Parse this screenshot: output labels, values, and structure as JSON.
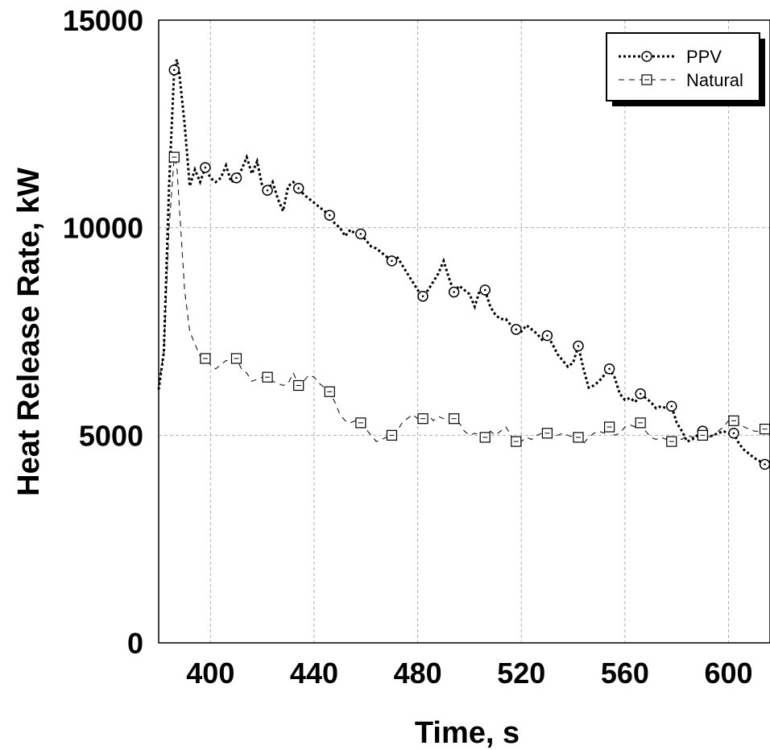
{
  "chart_data": {
    "type": "line",
    "title": "",
    "xlabel": "Time, s",
    "ylabel": "Heat Release Rate, kW",
    "xlim": [
      380,
      616
    ],
    "ylim": [
      0,
      15000
    ],
    "x_ticks": [
      400,
      440,
      480,
      520,
      560,
      600
    ],
    "x_tick_labels": [
      "400",
      "440",
      "480",
      "520",
      "560",
      "600"
    ],
    "y_ticks": [
      0,
      5000,
      10000,
      15000
    ],
    "y_tick_labels": [
      "0",
      "5000",
      "10000",
      "15000"
    ],
    "grid": true,
    "legend_position": "top-right",
    "series": [
      {
        "name": "PPV",
        "line_style": "dotted",
        "marker": "circle",
        "points": [
          [
            380,
            6100
          ],
          [
            382,
            7000
          ],
          [
            384,
            11000
          ],
          [
            386,
            13800
          ],
          [
            387,
            14050
          ],
          [
            388,
            13700
          ],
          [
            390,
            12500
          ],
          [
            392,
            11000
          ],
          [
            394,
            11400
          ],
          [
            396,
            11100
          ],
          [
            398,
            11450
          ],
          [
            400,
            11200
          ],
          [
            402,
            11100
          ],
          [
            404,
            11200
          ],
          [
            406,
            11500
          ],
          [
            408,
            11100
          ],
          [
            410,
            11200
          ],
          [
            412,
            11400
          ],
          [
            414,
            11700
          ],
          [
            416,
            11300
          ],
          [
            418,
            11600
          ],
          [
            420,
            11000
          ],
          [
            422,
            10900
          ],
          [
            424,
            11100
          ],
          [
            426,
            10700
          ],
          [
            428,
            10400
          ],
          [
            430,
            11000
          ],
          [
            432,
            11100
          ],
          [
            434,
            10950
          ],
          [
            436,
            10800
          ],
          [
            438,
            10700
          ],
          [
            440,
            10600
          ],
          [
            442,
            10500
          ],
          [
            444,
            10400
          ],
          [
            446,
            10300
          ],
          [
            448,
            10100
          ],
          [
            450,
            10000
          ],
          [
            452,
            9800
          ],
          [
            454,
            9950
          ],
          [
            456,
            9850
          ],
          [
            458,
            9850
          ],
          [
            460,
            9700
          ],
          [
            462,
            9550
          ],
          [
            464,
            9500
          ],
          [
            466,
            9400
          ],
          [
            468,
            9300
          ],
          [
            470,
            9200
          ],
          [
            472,
            9300
          ],
          [
            474,
            9100
          ],
          [
            476,
            8900
          ],
          [
            478,
            8700
          ],
          [
            480,
            8500
          ],
          [
            482,
            8350
          ],
          [
            484,
            8500
          ],
          [
            486,
            8700
          ],
          [
            488,
            8900
          ],
          [
            490,
            9200
          ],
          [
            492,
            8800
          ],
          [
            494,
            8450
          ],
          [
            496,
            8600
          ],
          [
            498,
            8500
          ],
          [
            500,
            8400
          ],
          [
            502,
            8100
          ],
          [
            504,
            8500
          ],
          [
            506,
            8500
          ],
          [
            508,
            8100
          ],
          [
            510,
            7900
          ],
          [
            512,
            7800
          ],
          [
            514,
            7800
          ],
          [
            516,
            7650
          ],
          [
            518,
            7550
          ],
          [
            520,
            7500
          ],
          [
            522,
            7650
          ],
          [
            524,
            7550
          ],
          [
            526,
            7450
          ],
          [
            528,
            7300
          ],
          [
            530,
            7400
          ],
          [
            532,
            7200
          ],
          [
            534,
            6950
          ],
          [
            536,
            6800
          ],
          [
            538,
            6650
          ],
          [
            540,
            6750
          ],
          [
            542,
            7150
          ],
          [
            544,
            6600
          ],
          [
            546,
            6150
          ],
          [
            548,
            6200
          ],
          [
            550,
            6300
          ],
          [
            552,
            6450
          ],
          [
            554,
            6600
          ],
          [
            556,
            6400
          ],
          [
            558,
            6000
          ],
          [
            560,
            5850
          ],
          [
            562,
            5900
          ],
          [
            564,
            5800
          ],
          [
            566,
            6000
          ],
          [
            568,
            5900
          ],
          [
            570,
            5800
          ],
          [
            572,
            5650
          ],
          [
            574,
            5700
          ],
          [
            576,
            5650
          ],
          [
            578,
            5700
          ],
          [
            580,
            5300
          ],
          [
            582,
            5100
          ],
          [
            584,
            4850
          ],
          [
            586,
            4900
          ],
          [
            588,
            5000
          ],
          [
            590,
            5100
          ],
          [
            592,
            4950
          ],
          [
            594,
            5000
          ],
          [
            596,
            5050
          ],
          [
            598,
            5100
          ],
          [
            600,
            5050
          ],
          [
            602,
            5050
          ],
          [
            604,
            4800
          ],
          [
            606,
            4650
          ],
          [
            608,
            4550
          ],
          [
            610,
            4450
          ],
          [
            612,
            4380
          ],
          [
            614,
            4300
          ],
          [
            616,
            4250
          ]
        ],
        "marker_points": [
          [
            386,
            13800
          ],
          [
            398,
            11450
          ],
          [
            410,
            11200
          ],
          [
            422,
            10900
          ],
          [
            434,
            10950
          ],
          [
            446,
            10300
          ],
          [
            458,
            9850
          ],
          [
            470,
            9200
          ],
          [
            482,
            8350
          ],
          [
            494,
            8450
          ],
          [
            506,
            8500
          ],
          [
            518,
            7550
          ],
          [
            530,
            7400
          ],
          [
            542,
            7150
          ],
          [
            554,
            6600
          ],
          [
            566,
            6000
          ],
          [
            578,
            5700
          ],
          [
            590,
            5100
          ],
          [
            602,
            5050
          ],
          [
            614,
            4300
          ]
        ]
      },
      {
        "name": "Natural",
        "line_style": "dashed",
        "marker": "square",
        "points": [
          [
            380,
            6200
          ],
          [
            382,
            7000
          ],
          [
            384,
            10000
          ],
          [
            386,
            11700
          ],
          [
            387,
            11500
          ],
          [
            388,
            10500
          ],
          [
            390,
            8500
          ],
          [
            392,
            7500
          ],
          [
            394,
            7200
          ],
          [
            396,
            6900
          ],
          [
            398,
            6850
          ],
          [
            400,
            6700
          ],
          [
            402,
            6600
          ],
          [
            404,
            6700
          ],
          [
            406,
            6800
          ],
          [
            408,
            6800
          ],
          [
            410,
            6850
          ],
          [
            412,
            6600
          ],
          [
            414,
            6500
          ],
          [
            416,
            6300
          ],
          [
            418,
            6350
          ],
          [
            420,
            6400
          ],
          [
            422,
            6400
          ],
          [
            424,
            6300
          ],
          [
            426,
            6250
          ],
          [
            428,
            6200
          ],
          [
            430,
            6250
          ],
          [
            432,
            6500
          ],
          [
            434,
            6200
          ],
          [
            436,
            6300
          ],
          [
            438,
            6450
          ],
          [
            440,
            6400
          ],
          [
            442,
            6250
          ],
          [
            444,
            6150
          ],
          [
            446,
            6050
          ],
          [
            448,
            5800
          ],
          [
            450,
            5500
          ],
          [
            452,
            5350
          ],
          [
            454,
            5300
          ],
          [
            456,
            5350
          ],
          [
            458,
            5300
          ],
          [
            460,
            5150
          ],
          [
            462,
            5000
          ],
          [
            464,
            4850
          ],
          [
            466,
            4900
          ],
          [
            468,
            4950
          ],
          [
            470,
            5000
          ],
          [
            472,
            5100
          ],
          [
            474,
            5300
          ],
          [
            476,
            5400
          ],
          [
            478,
            5500
          ],
          [
            480,
            5400
          ],
          [
            482,
            5400
          ],
          [
            484,
            5500
          ],
          [
            486,
            5350
          ],
          [
            488,
            5450
          ],
          [
            490,
            5400
          ],
          [
            492,
            5350
          ],
          [
            494,
            5400
          ],
          [
            496,
            5300
          ],
          [
            498,
            5100
          ],
          [
            500,
            5000
          ],
          [
            502,
            5050
          ],
          [
            504,
            5000
          ],
          [
            506,
            4950
          ],
          [
            508,
            5100
          ],
          [
            510,
            5000
          ],
          [
            512,
            5100
          ],
          [
            514,
            5200
          ],
          [
            516,
            5000
          ],
          [
            518,
            4850
          ],
          [
            520,
            4850
          ],
          [
            522,
            4950
          ],
          [
            524,
            4900
          ],
          [
            526,
            5000
          ],
          [
            528,
            5050
          ],
          [
            530,
            5050
          ],
          [
            532,
            5000
          ],
          [
            534,
            5000
          ],
          [
            536,
            5050
          ],
          [
            538,
            5000
          ],
          [
            540,
            4950
          ],
          [
            542,
            4950
          ],
          [
            544,
            4800
          ],
          [
            546,
            4950
          ],
          [
            548,
            5050
          ],
          [
            550,
            5100
          ],
          [
            552,
            5050
          ],
          [
            554,
            5200
          ],
          [
            556,
            5000
          ],
          [
            558,
            5050
          ],
          [
            560,
            5200
          ],
          [
            562,
            5250
          ],
          [
            564,
            5200
          ],
          [
            566,
            5300
          ],
          [
            568,
            5100
          ],
          [
            570,
            4950
          ],
          [
            572,
            4900
          ],
          [
            574,
            4950
          ],
          [
            576,
            4900
          ],
          [
            578,
            4850
          ],
          [
            580,
            4950
          ],
          [
            582,
            4900
          ],
          [
            584,
            5000
          ],
          [
            586,
            4950
          ],
          [
            588,
            5000
          ],
          [
            590,
            5000
          ],
          [
            592,
            4950
          ],
          [
            594,
            5000
          ],
          [
            596,
            5100
          ],
          [
            598,
            5200
          ],
          [
            600,
            5350
          ],
          [
            602,
            5350
          ],
          [
            604,
            5300
          ],
          [
            606,
            5200
          ],
          [
            608,
            5150
          ],
          [
            610,
            5100
          ],
          [
            612,
            5100
          ],
          [
            614,
            5150
          ],
          [
            616,
            5150
          ]
        ],
        "marker_points": [
          [
            386,
            11700
          ],
          [
            398,
            6850
          ],
          [
            410,
            6850
          ],
          [
            422,
            6400
          ],
          [
            434,
            6200
          ],
          [
            446,
            6050
          ],
          [
            458,
            5300
          ],
          [
            470,
            5000
          ],
          [
            482,
            5400
          ],
          [
            494,
            5400
          ],
          [
            506,
            4950
          ],
          [
            518,
            4850
          ],
          [
            530,
            5050
          ],
          [
            542,
            4950
          ],
          [
            554,
            5200
          ],
          [
            566,
            5300
          ],
          [
            578,
            4850
          ],
          [
            590,
            5000
          ],
          [
            602,
            5350
          ],
          [
            614,
            5150
          ]
        ]
      }
    ]
  }
}
